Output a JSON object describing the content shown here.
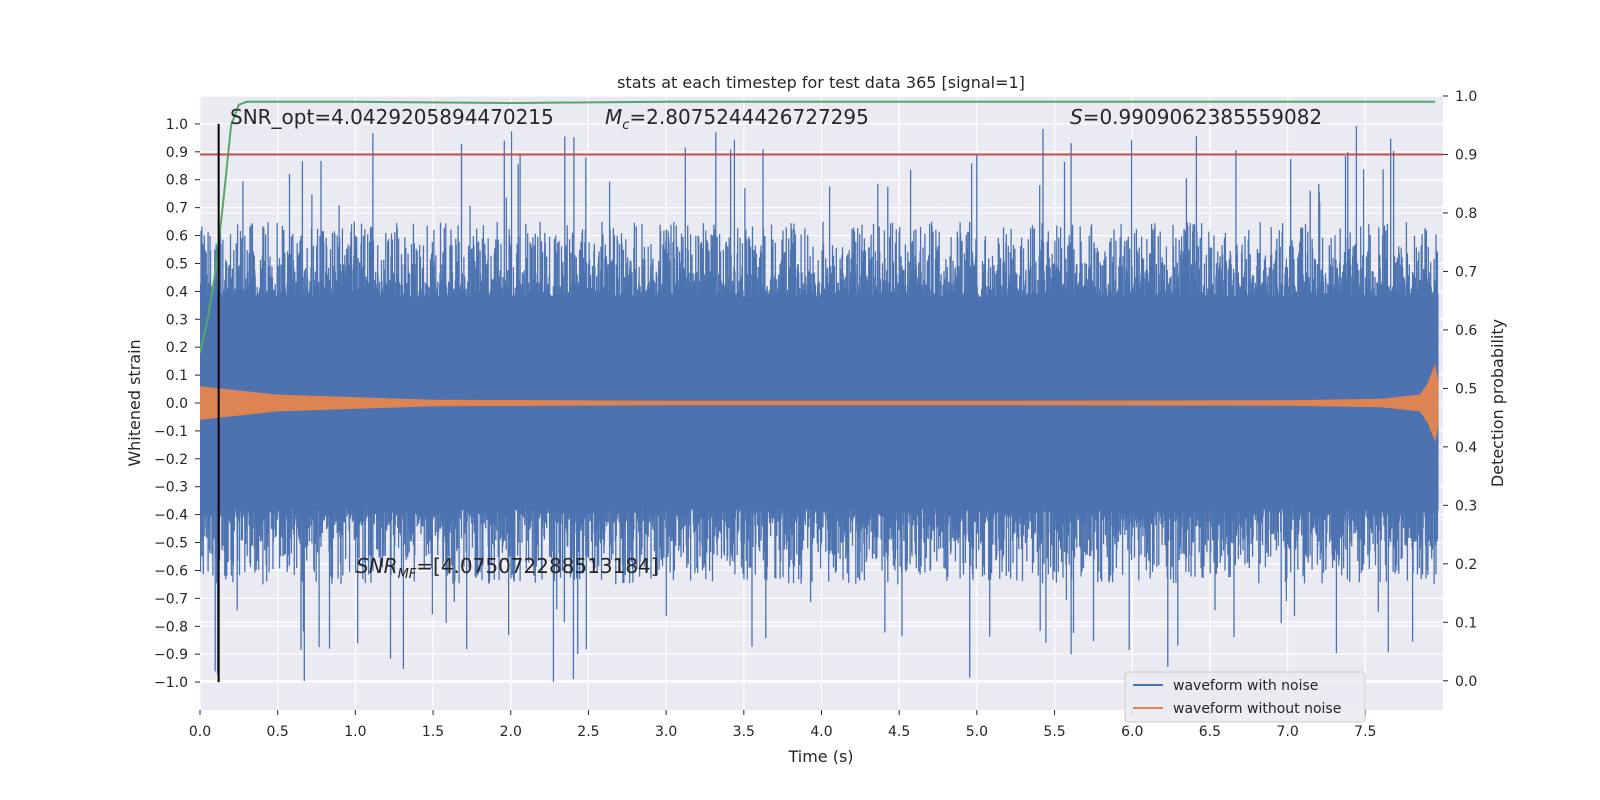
{
  "chart_data": {
    "type": "line",
    "title": "stats at each timestep for test data 365 [signal=1]",
    "xlabel": "Time (s)",
    "ylabel": "Whitened strain",
    "y2label": "Detection probability",
    "xlim": [
      0.0,
      8.0
    ],
    "ylim": [
      -1.1,
      1.1
    ],
    "y2lim": [
      -0.05,
      1.0
    ],
    "xticks": [
      "0.0",
      "0.5",
      "1.0",
      "1.5",
      "2.0",
      "2.5",
      "3.0",
      "3.5",
      "4.0",
      "4.5",
      "5.0",
      "5.5",
      "6.0",
      "6.5",
      "7.0",
      "7.5"
    ],
    "yticks": [
      "1.0",
      "0.9",
      "0.8",
      "0.7",
      "0.6",
      "0.5",
      "0.4",
      "0.3",
      "0.2",
      "0.1",
      "0.0",
      "−0.1",
      "−0.2",
      "−0.3",
      "−0.4",
      "−0.5",
      "−0.6",
      "−0.7",
      "−0.8",
      "−0.9",
      "−1.0"
    ],
    "y2ticks": [
      "1.0",
      "0.9",
      "0.8",
      "0.7",
      "0.6",
      "0.5",
      "0.4",
      "0.3",
      "0.2",
      "0.1",
      "0.0"
    ],
    "grid": true,
    "legend_position": "lower-right",
    "series": [
      {
        "name": "waveform with noise",
        "color": "#4c72b0",
        "core_amplitude": 0.38,
        "typical_peak": 0.6,
        "max_peak": 1.0
      },
      {
        "name": "waveform without noise",
        "color": "#dd8452",
        "envelope": {
          "x": [
            0.0,
            0.5,
            1.5,
            3.0,
            5.0,
            7.0,
            7.6,
            7.85,
            7.9,
            7.95,
            8.0
          ],
          "y": [
            0.06,
            0.03,
            0.012,
            0.008,
            0.008,
            0.01,
            0.015,
            0.03,
            0.07,
            0.14,
            0.08
          ]
        }
      },
      {
        "color": "#55a868",
        "axis": "secondary",
        "x": [
          0.0,
          0.05,
          0.1,
          0.15,
          0.2,
          0.25,
          0.3,
          0.35,
          0.5,
          1.0,
          2.0,
          3.0,
          4.0,
          5.0,
          6.0,
          7.0,
          7.95
        ],
        "y": [
          0.56,
          0.62,
          0.7,
          0.82,
          0.95,
          0.985,
          0.99,
          0.99,
          0.99,
          0.99,
          0.988,
          0.99,
          0.99,
          0.99,
          0.99,
          0.99,
          0.99
        ]
      },
      {
        "color": "#c44e52",
        "axis": "secondary",
        "x": [
          0.0,
          8.0
        ],
        "y": [
          0.9,
          0.9
        ]
      }
    ],
    "vline": {
      "x": 0.12,
      "y_range": [
        -1.0,
        1.0
      ],
      "color": "#000000"
    },
    "annotations": {
      "snr_opt": "SNR_opt=4.0429205894470215",
      "mc": "=2.8075244426727295",
      "mc_symbol": "M",
      "mc_sub": "c",
      "s": "=0.9909062385559082",
      "s_symbol": "S",
      "snr_mf": "=[4.075072288513184]",
      "snr_mf_symbol": "SNR",
      "snr_mf_sub": "MF"
    }
  }
}
